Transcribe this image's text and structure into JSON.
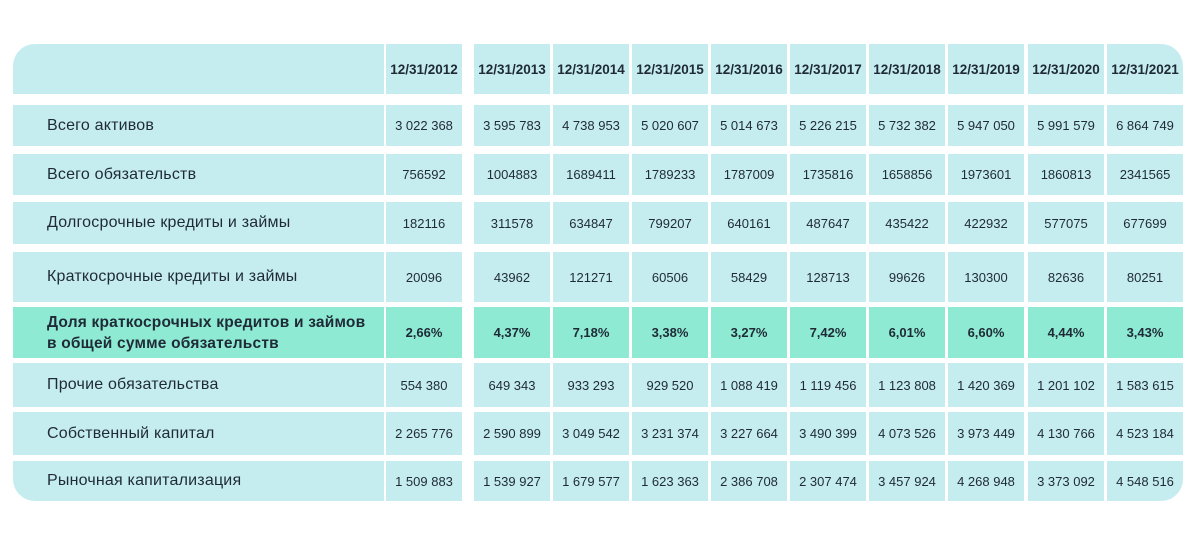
{
  "table": {
    "corner_label": "",
    "columns": [
      "12/31/2012",
      "12/31/2013",
      "12/31/2014",
      "12/31/2015",
      "12/31/2016",
      "12/31/2017",
      "12/31/2018",
      "12/31/2019",
      "12/31/2020",
      "12/31/2021"
    ],
    "highlight_color": "#8eead3",
    "base_color": "#c5edf0",
    "rows": [
      {
        "label": "Всего активов",
        "highlight": false,
        "values": [
          "3 022 368",
          "3 595 783",
          "4 738 953",
          "5 020 607",
          "5 014 673",
          "5 226 215",
          "5 732 382",
          "5 947 050",
          "5 991 579",
          "6 864 749"
        ]
      },
      {
        "label": "Всего обязательств",
        "highlight": false,
        "values": [
          "756592",
          "1004883",
          "1689411",
          "1789233",
          "1787009",
          "1735816",
          "1658856",
          "1973601",
          "1860813",
          "2341565"
        ]
      },
      {
        "label": "Долгосрочные кредиты и займы",
        "highlight": false,
        "values": [
          "182116",
          "311578",
          "634847",
          "799207",
          "640161",
          "487647",
          "435422",
          "422932",
          "577075",
          "677699"
        ]
      },
      {
        "label": "Краткосрочные кредиты и займы",
        "highlight": false,
        "values": [
          "20096",
          "43962",
          "121271",
          "60506",
          "58429",
          "128713",
          "99626",
          "130300",
          "82636",
          "80251"
        ]
      },
      {
        "label": "Доля краткосрочных кредитов и займов в общей сумме обязательств",
        "highlight": true,
        "values": [
          "2,66%",
          "4,37%",
          "7,18%",
          "3,38%",
          "3,27%",
          "7,42%",
          "6,01%",
          "6,60%",
          "4,44%",
          "3,43%"
        ]
      },
      {
        "label": "Прочие обязательства",
        "highlight": false,
        "values": [
          "554 380",
          "649 343",
          "933 293",
          "929 520",
          "1 088 419",
          "1 119 456",
          "1 123 808",
          "1 420 369",
          "1 201 102",
          "1 583 615"
        ]
      },
      {
        "label": "Собственный капитал",
        "highlight": false,
        "values": [
          "2 265 776",
          "2 590 899",
          "3 049 542",
          "3 231 374",
          "3 227 664",
          "3 490 399",
          "4 073 526",
          "3 973 449",
          "4 130 766",
          "4 523 184"
        ]
      },
      {
        "label": "Рыночная капитализация",
        "highlight": false,
        "values": [
          "1 509 883",
          "1 539 927",
          "1 679 577",
          "1 623 363",
          "2 386 708",
          "2 307 474",
          "3 457 924",
          "4 268 948",
          "3 373 092",
          "4 548 516"
        ]
      }
    ]
  }
}
